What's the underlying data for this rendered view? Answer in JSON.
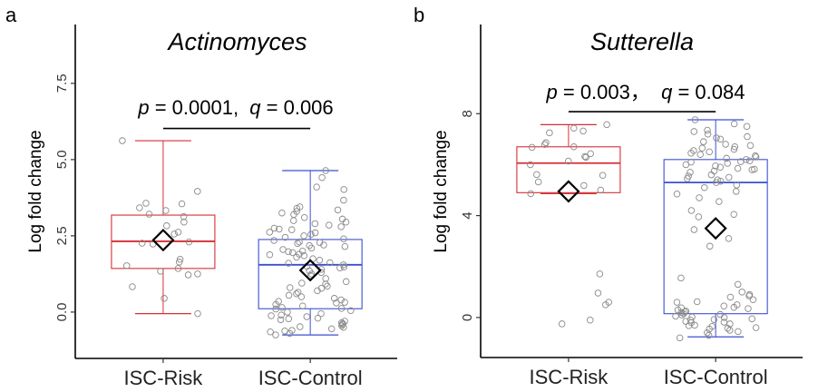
{
  "chart_data": [
    {
      "type": "box",
      "panel_label": "a",
      "title": "Actinomyces",
      "ylabel": "Log fold change",
      "xlabel": "",
      "ylim": [
        -1.52,
        9.43
      ],
      "yticks": [
        0.0,
        2.5,
        5.0,
        7.5
      ],
      "ytick_labels": [
        "0.0",
        "2.5",
        "5.0",
        "7.5"
      ],
      "categories": [
        "ISC-Risk",
        "ISC-Control"
      ],
      "annotation": {
        "p_symbol": "p",
        "p_text": " = 0.0001,  ",
        "q_symbol": "q",
        "q_text": " = 0.006",
        "bracket_y": 6.02
      },
      "boxes": [
        {
          "category": "ISC-Risk",
          "color": "#d62f35",
          "whisker_low": -0.05,
          "q1": 1.43,
          "median": 2.32,
          "q3": 3.18,
          "whisker_high": 5.62,
          "mean": 2.36,
          "points": [
            5.62,
            3.96,
            3.57,
            3.42,
            3.55,
            3.33,
            3.21,
            3.13,
            2.95,
            2.83,
            2.62,
            2.56,
            2.3,
            2.26,
            2.23,
            1.73,
            1.64,
            1.52,
            1.43,
            1.34,
            1.25,
            1.22,
            0.83,
            0.45,
            -0.05
          ]
        },
        {
          "category": "ISC-Control",
          "color": "#3c4fd0",
          "whisker_low": -0.75,
          "q1": 0.11,
          "median": 1.55,
          "q3": 2.38,
          "whisker_high": 4.64,
          "mean": 1.37,
          "points": [
            4.64,
            4.41,
            4.1,
            4.02,
            3.67,
            3.45,
            3.4,
            3.35,
            3.3,
            3.25,
            3.2,
            3.1,
            3.0,
            2.95,
            2.9,
            2.85,
            2.8,
            2.75,
            2.7,
            2.6,
            2.55,
            2.5,
            2.45,
            2.4,
            2.35,
            2.3,
            2.25,
            2.2,
            2.15,
            2.1,
            2.05,
            2.0,
            1.95,
            1.9,
            1.85,
            1.8,
            1.75,
            1.7,
            1.6,
            1.55,
            1.5,
            1.45,
            1.4,
            1.3,
            1.25,
            1.2,
            1.1,
            1.0,
            0.95,
            0.85,
            0.8,
            0.7,
            0.65,
            0.6,
            0.5,
            0.45,
            0.4,
            0.35,
            0.3,
            0.25,
            0.2,
            0.15,
            0.1,
            0.05,
            0.0,
            -0.05,
            -0.1,
            -0.15,
            -0.2,
            -0.25,
            -0.3,
            -0.35,
            -0.4,
            -0.45,
            -0.5,
            -0.55,
            -0.6,
            -0.65,
            -0.7,
            -0.75,
            2.62,
            2.28,
            1.98,
            1.62,
            1.35,
            0.92,
            0.55,
            0.12,
            -0.22,
            -0.48,
            3.05,
            2.72,
            2.18,
            1.88,
            1.48,
            0.78,
            0.32,
            -0.12,
            -0.38,
            -0.62
          ]
        }
      ]
    },
    {
      "type": "box",
      "panel_label": "b",
      "title": "Sutterella",
      "ylabel": "Log fold change",
      "xlabel": "",
      "ylim": [
        -1.57,
        11.5
      ],
      "yticks": [
        0,
        4,
        8
      ],
      "ytick_labels": [
        "0",
        "4",
        "8"
      ],
      "categories": [
        "ISC-Risk",
        "ISC-Control"
      ],
      "annotation": {
        "p_symbol": "p",
        "p_text": " = 0.003，  ",
        "q_symbol": "q",
        "q_text": " = 0.084",
        "bracket_y": 8.08
      },
      "boxes": [
        {
          "category": "ISC-Risk",
          "color": "#d62f35",
          "whisker_low": 4.86,
          "q1": 4.9,
          "median": 6.06,
          "q3": 6.7,
          "whisker_high": 7.57,
          "mean": 4.95,
          "points": [
            7.57,
            7.43,
            7.32,
            7.25,
            6.86,
            6.79,
            6.7,
            6.68,
            6.43,
            6.32,
            6.29,
            6.14,
            6.0,
            5.61,
            5.58,
            5.32,
            5.18,
            5.0,
            4.86,
            1.71,
            0.96,
            0.6,
            0.5,
            -0.1,
            -0.25
          ]
        },
        {
          "category": "ISC-Control",
          "color": "#3c4fd0",
          "whisker_low": -0.76,
          "q1": 0.15,
          "median": 5.3,
          "q3": 6.2,
          "whisker_high": 7.76,
          "mean": 3.5,
          "points": [
            7.76,
            7.6,
            7.5,
            7.35,
            7.3,
            7.2,
            7.1,
            7.0,
            6.9,
            6.8,
            6.7,
            6.65,
            6.6,
            6.5,
            6.45,
            6.4,
            6.35,
            6.3,
            6.25,
            6.2,
            6.15,
            6.1,
            6.05,
            6.0,
            5.95,
            5.9,
            5.85,
            5.8,
            5.75,
            5.7,
            5.6,
            5.55,
            5.5,
            5.4,
            5.35,
            5.3,
            5.2,
            5.1,
            4.95,
            4.85,
            4.7,
            4.55,
            4.2,
            4.05,
            3.95,
            3.45,
            3.1,
            2.8,
            1.55,
            1.3,
            1.0,
            0.9,
            0.85,
            0.8,
            0.7,
            0.6,
            0.5,
            0.45,
            0.4,
            0.35,
            0.3,
            0.25,
            0.2,
            0.15,
            0.1,
            0.05,
            0.0,
            -0.05,
            -0.1,
            -0.15,
            -0.2,
            -0.25,
            -0.3,
            -0.35,
            -0.4,
            -0.45,
            -0.5,
            -0.55,
            -0.6,
            -0.7,
            -0.8,
            6.55,
            6.12,
            5.82,
            5.45,
            6.75,
            7.05,
            0.22,
            0.02,
            -0.18,
            -0.32,
            0.38,
            0.62,
            -0.42,
            0.12,
            -0.08
          ]
        }
      ]
    }
  ]
}
